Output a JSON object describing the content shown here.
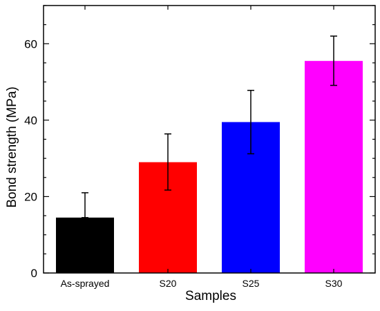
{
  "chart_data": {
    "type": "bar",
    "title": "",
    "xlabel": "Samples",
    "ylabel": "Bond strength (MPa)",
    "categories": [
      "As-sprayed",
      "S20",
      "S25",
      "S30"
    ],
    "values": [
      14.5,
      29.0,
      39.5,
      55.5
    ],
    "error_low": [
      14.5,
      21.7,
      31.2,
      49.1
    ],
    "error_high": [
      21.0,
      36.4,
      47.8,
      62.0
    ],
    "colors": [
      "#000000",
      "#ff0000",
      "#0000ff",
      "#ff00ff"
    ],
    "ylim": [
      0,
      70
    ],
    "yticks": [
      "0",
      "20",
      "40",
      "60"
    ],
    "ytick_values": [
      0,
      20,
      40,
      60
    ],
    "y_minor_step": 5,
    "grid": false,
    "legend": "none"
  }
}
